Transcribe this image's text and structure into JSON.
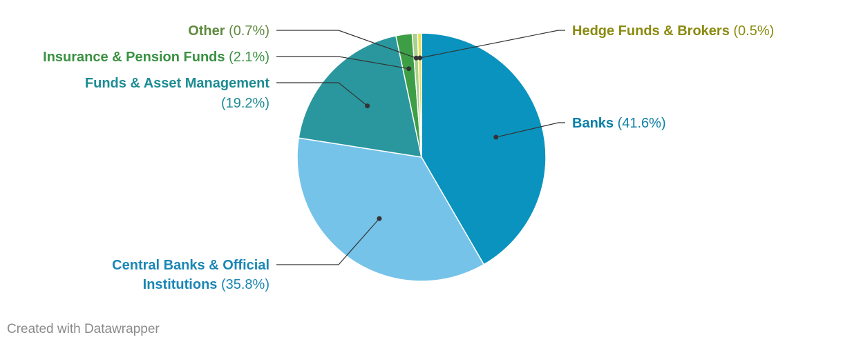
{
  "chart_data": {
    "type": "pie",
    "slices": [
      {
        "label": "Banks",
        "value": 41.6,
        "display": "(41.6%)",
        "color": "#0a93be",
        "label_color": "#0a7fa6"
      },
      {
        "label": "Central Banks & Official Institutions",
        "label_lines": [
          "Central Banks & Official",
          "Institutions"
        ],
        "value": 35.8,
        "display": "(35.8%)",
        "color": "#76c3ea",
        "label_color": "#1a86b5"
      },
      {
        "label": "Funds & Asset Management",
        "value": 19.2,
        "display": "(19.2%)",
        "color": "#2a979e",
        "label_color": "#1d8c94"
      },
      {
        "label": "Insurance & Pension Funds",
        "value": 2.1,
        "display": "(2.1%)",
        "color": "#3e9e46",
        "label_color": "#3a9141"
      },
      {
        "label": "Other",
        "value": 0.7,
        "display": "(0.7%)",
        "color": "#a9d08e",
        "label_color": "#5f8a3e"
      },
      {
        "label": "Hedge Funds & Brokers",
        "value": 0.5,
        "display": "(0.5%)",
        "color": "#e5e04a",
        "label_color": "#8a8a10"
      }
    ]
  },
  "footer": {
    "credit": "Created with Datawrapper"
  }
}
